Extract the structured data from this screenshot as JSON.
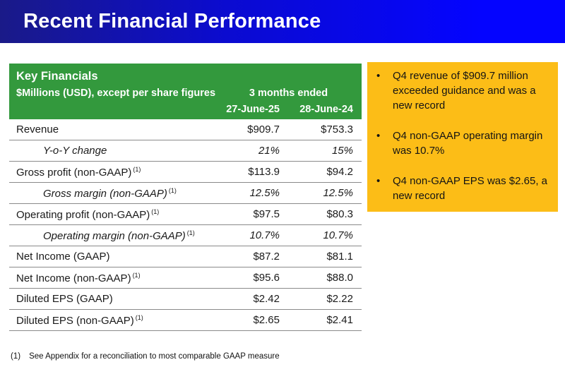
{
  "slide": {
    "title": "Recent Financial Performance"
  },
  "table": {
    "title": "Key Financials",
    "subtitle": "$Millions (USD), except per share figures",
    "period_label": "3 months ended",
    "columns": [
      "27-June-25",
      "28-June-24"
    ],
    "rows": [
      {
        "label": "Revenue",
        "note": "",
        "italic": false,
        "values": [
          "$909.7",
          "$753.3"
        ]
      },
      {
        "label": "Y-o-Y change",
        "note": "",
        "italic": true,
        "values": [
          "21%",
          "15%"
        ]
      },
      {
        "label": "Gross profit (non-GAAP)",
        "note": "(1)",
        "italic": false,
        "values": [
          "$113.9",
          "$94.2"
        ]
      },
      {
        "label": "Gross margin (non-GAAP)",
        "note": "(1)",
        "italic": true,
        "values": [
          "12.5%",
          "12.5%"
        ]
      },
      {
        "label": "Operating profit (non-GAAP)",
        "note": "(1)",
        "italic": false,
        "values": [
          "$97.5",
          "$80.3"
        ]
      },
      {
        "label": "Operating margin (non-GAAP)",
        "note": "(1)",
        "italic": true,
        "values": [
          "10.7%",
          "10.7%"
        ]
      },
      {
        "label": "Net Income (GAAP)",
        "note": "",
        "italic": false,
        "values": [
          "$87.2",
          "$81.1"
        ]
      },
      {
        "label": "Net Income (non-GAAP)",
        "note": "(1)",
        "italic": false,
        "values": [
          "$95.6",
          "$88.0"
        ]
      },
      {
        "label": "Diluted EPS (GAAP)",
        "note": "",
        "italic": false,
        "values": [
          "$2.42",
          "$2.22"
        ]
      },
      {
        "label": "Diluted EPS (non-GAAP)",
        "note": "(1)",
        "italic": false,
        "values": [
          "$2.65",
          "$2.41"
        ]
      }
    ]
  },
  "highlights": {
    "bullets": [
      "Q4 revenue of $909.7 million exceeded guidance and was a new record",
      "Q4 non-GAAP operating margin was 10.7%",
      "Q4 non-GAAP EPS was $2.65, a new record"
    ]
  },
  "footnote": {
    "marker": "(1)",
    "text": "See Appendix for a reconciliation to most comparable GAAP measure"
  },
  "colors": {
    "header_gradient_start": "#1a1a88",
    "header_gradient_mid": "#0b0bd0",
    "header_gradient_end": "#0404ff",
    "table_header_green": "#33993d",
    "highlight_yellow": "#fcbd17",
    "row_rule_gray": "#8a8a8a",
    "title_text": "#ffffff",
    "body_text": "#1a1a1a"
  }
}
